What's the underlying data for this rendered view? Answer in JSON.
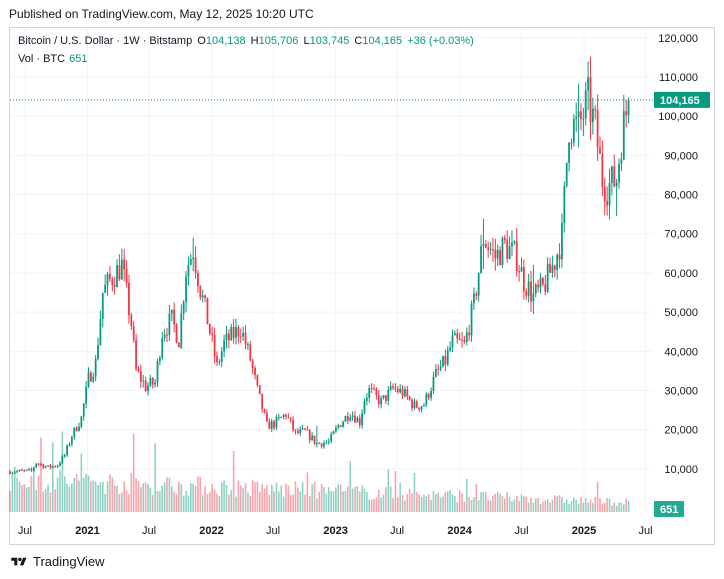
{
  "header": {
    "published": "Published on TradingView.com, May 12, 2025 10:20 UTC"
  },
  "legend": {
    "title": "Bitcoin / U.S. Dollar · 1W · Bitstamp",
    "o_label": "O",
    "o_value": "104,138",
    "h_label": "H",
    "h_value": "105,706",
    "l_label": "L",
    "l_value": "103,745",
    "c_label": "C",
    "c_value": "104,165",
    "change": "+36 (+0.03%)",
    "vol_label": "Vol · BTC",
    "vol_value": "651"
  },
  "price_tag": "104,165",
  "vol_tag": "651",
  "footer": {
    "brand": "TradingView"
  },
  "colors": {
    "up": "#089981",
    "down": "#f23645",
    "last_price": "#089981",
    "grid": "#f0f3fa",
    "axis_text": "#131722"
  },
  "chart_data": {
    "type": "candlestick",
    "title": "Bitcoin / U.S. Dollar · 1W · Bitstamp",
    "y_axis": {
      "position": "right",
      "ticks": [
        10000,
        20000,
        30000,
        40000,
        50000,
        60000,
        70000,
        80000,
        90000,
        100000,
        110000,
        120000
      ],
      "tick_labels": [
        "10,000",
        "20,000",
        "30,000",
        "40,000",
        "50,000",
        "60,000",
        "70,000",
        "80,000",
        "90,000",
        "100,000",
        "110,000",
        "120,000"
      ],
      "range": [
        -1000,
        122500
      ]
    },
    "x_axis": {
      "ticks": [
        "2020-07-01",
        "2021-01-01",
        "2021-07-01",
        "2022-01-01",
        "2022-07-01",
        "2023-01-01",
        "2023-07-01",
        "2024-01-01",
        "2024-07-01",
        "2025-01-01",
        "2025-07-01"
      ],
      "tick_labels": [
        "Jul",
        "2021",
        "Jul",
        "2022",
        "Jul",
        "2023",
        "Jul",
        "2024",
        "Jul",
        "2025",
        "Jul"
      ],
      "range": [
        "2020-05-18",
        "2025-07-20"
      ]
    },
    "grid": true,
    "last_price": 104165,
    "approx_close_trajectory": [
      [
        "2020-05-18",
        9300
      ],
      [
        "2020-06-15",
        9400
      ],
      [
        "2020-07-20",
        9500
      ],
      [
        "2020-08-03",
        11600
      ],
      [
        "2020-09-07",
        10400
      ],
      [
        "2020-10-05",
        11000
      ],
      [
        "2020-10-26",
        13500
      ],
      [
        "2020-11-16",
        18500
      ],
      [
        "2020-12-14",
        23000
      ],
      [
        "2021-01-04",
        33000
      ],
      [
        "2021-01-25",
        37000
      ],
      [
        "2021-02-15",
        55000
      ],
      [
        "2021-03-08",
        58000
      ],
      [
        "2021-04-12",
        62000
      ],
      [
        "2021-05-10",
        47000
      ],
      [
        "2021-05-24",
        35000
      ],
      [
        "2021-06-21",
        31000
      ],
      [
        "2021-07-19",
        32000
      ],
      [
        "2021-08-09",
        45000
      ],
      [
        "2021-09-06",
        48000
      ],
      [
        "2021-09-27",
        43000
      ],
      [
        "2021-10-18",
        61000
      ],
      [
        "2021-11-08",
        66000
      ],
      [
        "2021-11-29",
        56000
      ],
      [
        "2021-12-20",
        48000
      ],
      [
        "2022-01-17",
        36000
      ],
      [
        "2022-02-07",
        42000
      ],
      [
        "2022-03-28",
        46000
      ],
      [
        "2022-04-25",
        38000
      ],
      [
        "2022-05-16",
        30000
      ],
      [
        "2022-06-13",
        21000
      ],
      [
        "2022-07-04",
        21500
      ],
      [
        "2022-08-08",
        24000
      ],
      [
        "2022-09-05",
        19000
      ],
      [
        "2022-10-03",
        19500
      ],
      [
        "2022-11-07",
        16500
      ],
      [
        "2022-12-12",
        16800
      ],
      [
        "2023-01-09",
        21000
      ],
      [
        "2023-02-13",
        24500
      ],
      [
        "2023-03-13",
        22000
      ],
      [
        "2023-03-27",
        28000
      ],
      [
        "2023-04-10",
        30000
      ],
      [
        "2023-05-15",
        27000
      ],
      [
        "2023-06-19",
        30500
      ],
      [
        "2023-07-17",
        29500
      ],
      [
        "2023-08-21",
        26000
      ],
      [
        "2023-09-18",
        26500
      ],
      [
        "2023-10-23",
        34000
      ],
      [
        "2023-11-20",
        37500
      ],
      [
        "2023-12-11",
        42500
      ],
      [
        "2024-01-15",
        41500
      ],
      [
        "2024-02-12",
        52000
      ],
      [
        "2024-03-11",
        69000
      ],
      [
        "2024-04-15",
        64000
      ],
      [
        "2024-05-13",
        67000
      ],
      [
        "2024-06-17",
        64000
      ],
      [
        "2024-07-08",
        58000
      ],
      [
        "2024-08-05",
        54000
      ],
      [
        "2024-09-02",
        56000
      ],
      [
        "2024-10-07",
        63000
      ],
      [
        "2024-10-28",
        69500
      ],
      [
        "2024-11-18",
        98000
      ],
      [
        "2024-12-16",
        97000
      ],
      [
        "2025-01-13",
        104000
      ],
      [
        "2025-02-03",
        97000
      ],
      [
        "2025-02-24",
        84000
      ],
      [
        "2025-03-10",
        82000
      ],
      [
        "2025-04-07",
        84000
      ],
      [
        "2025-04-21",
        94500
      ],
      [
        "2025-05-12",
        104165
      ]
    ],
    "events": [
      {
        "date": "2021-04-12",
        "high": 64800,
        "low": 59000
      },
      {
        "date": "2021-11-08",
        "high": 69000,
        "low": 62000
      },
      {
        "date": "2022-11-07",
        "high": 21000,
        "low": 15500
      },
      {
        "date": "2024-03-11",
        "high": 73800,
        "low": 61000
      },
      {
        "date": "2024-08-05",
        "high": 62000,
        "low": 49500
      },
      {
        "date": "2024-12-16",
        "high": 108300,
        "low": 92000
      },
      {
        "date": "2025-01-20",
        "high": 109400,
        "low": 99000
      },
      {
        "date": "2025-04-07",
        "high": 84000,
        "low": 74500
      }
    ]
  }
}
